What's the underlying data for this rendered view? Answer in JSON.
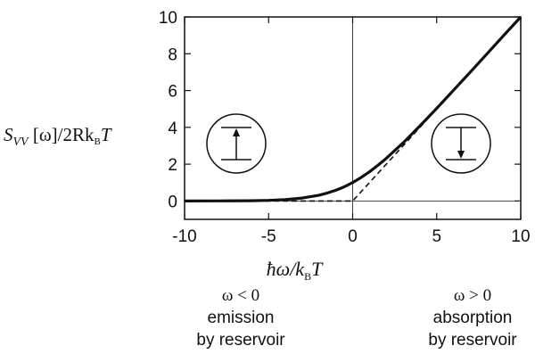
{
  "chart_data": {
    "type": "line",
    "ylabel": {
      "main": "S",
      "sub": "VV",
      "mid": " [ω]/2Rk",
      "subB": "B",
      "end": "T"
    },
    "xlabel": {
      "pre": "ħω/k",
      "sub": "B",
      "end": "T"
    },
    "xlim": [
      -10,
      10
    ],
    "ylim": [
      -1,
      10
    ],
    "x_ticks": [
      -10,
      -5,
      0,
      5,
      10
    ],
    "x_tick_labels": [
      "-10",
      "-5",
      "0",
      "5",
      "10"
    ],
    "y_ticks": [
      0,
      2,
      4,
      6,
      8,
      10
    ],
    "y_tick_labels": [
      "0",
      "2",
      "4",
      "6",
      "8",
      "10"
    ],
    "series": [
      {
        "style": "solid",
        "x": [
          -10,
          -8,
          -6,
          -5,
          -4,
          -3,
          -2,
          -1.5,
          -1,
          -0.5,
          0,
          0.5,
          1,
          1.5,
          2,
          3,
          4,
          5,
          6,
          7,
          8,
          9,
          10
        ],
        "y": [
          0.0005,
          0.003,
          0.015,
          0.034,
          0.075,
          0.157,
          0.313,
          0.436,
          0.582,
          0.771,
          1.0,
          1.271,
          1.582,
          1.936,
          2.313,
          3.157,
          4.075,
          5.034,
          6.015,
          7.006,
          8.003,
          9.001,
          10.0
        ]
      },
      {
        "style": "dashed",
        "x": [
          -10,
          0,
          10
        ],
        "y": [
          0,
          0,
          10
        ]
      }
    ],
    "reference_lines": {
      "vertical_x": 0,
      "horizontal_y": 0
    },
    "annotations": {
      "left": {
        "symbol": "ω < 0",
        "line1": "emission",
        "line2": "by reservoir",
        "inset_arrow": "up"
      },
      "right": {
        "symbol": "ω > 0",
        "line1": "absorption",
        "line2": "by reservoir",
        "inset_arrow": "down"
      }
    }
  }
}
